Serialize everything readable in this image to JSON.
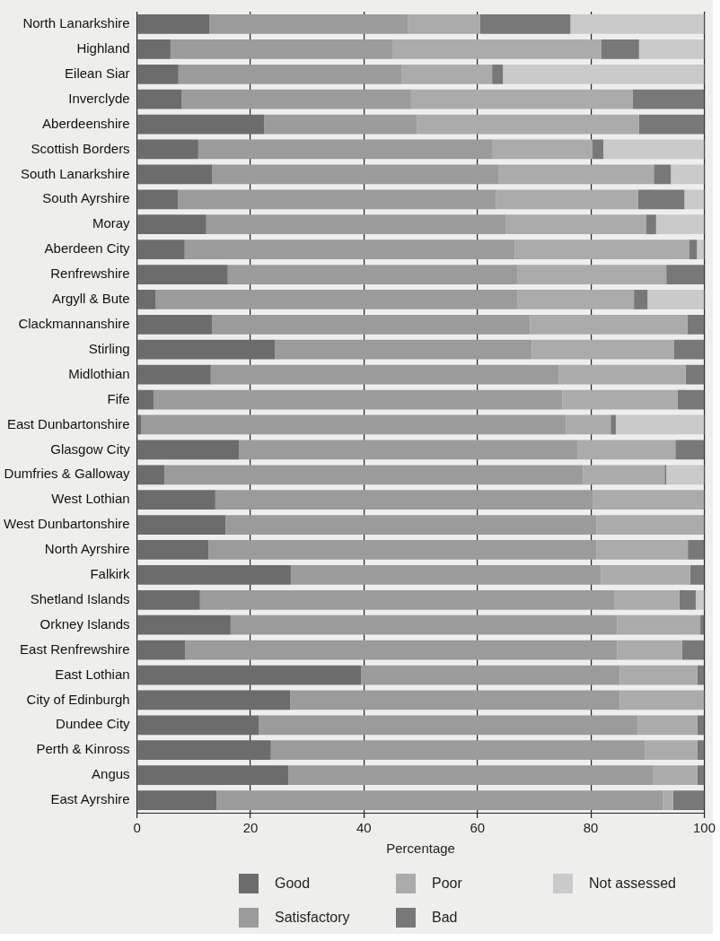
{
  "chart_data": {
    "type": "bar",
    "orientation": "horizontal",
    "stacked": true,
    "xlabel": "Percentage",
    "categories": [
      "North Lanarkshire",
      "Highland",
      "Eilean Siar",
      "Inverclyde",
      "Aberdeenshire",
      "Scottish Borders",
      "South Lanarkshire",
      "South Ayrshire",
      "Moray",
      "Aberdeen City",
      "Renfrewshire",
      "Argyll & Bute",
      "Clackmannanshire",
      "Stirling",
      "Midlothian",
      "Fife",
      "East Dunbartonshire",
      "Glasgow City",
      "Dumfries & Galloway",
      "West Lothian",
      "West Dunbartonshire",
      "North Ayrshire",
      "Falkirk",
      "Shetland Islands",
      "Orkney Islands",
      "East Renfrewshire",
      "East Lothian",
      "City of Edinburgh",
      "Dundee City",
      "Perth & Kinross",
      "Angus",
      "East Ayrshire"
    ],
    "series": [
      {
        "name": "Good",
        "color": "#6c6c6c",
        "values": [
          12.8,
          5.9,
          7.3,
          7.9,
          22.4,
          10.8,
          13.2,
          7.2,
          12.2,
          8.4,
          16,
          3.3,
          13.2,
          24.3,
          13,
          2.9,
          0.7,
          18,
          4.8,
          13.8,
          15.6,
          12.6,
          27.1,
          11.1,
          16.5,
          8.5,
          39.5,
          27,
          21.5,
          23.6,
          26.7,
          14
        ]
      },
      {
        "name": "Satisfactory",
        "color": "#9b9b9b",
        "values": [
          35,
          39.1,
          39.3,
          40.4,
          26.9,
          51.9,
          50.6,
          56.1,
          52.8,
          58.2,
          51,
          63.7,
          56.1,
          45.3,
          61.3,
          72.1,
          74.9,
          59.6,
          73.8,
          66.5,
          65.4,
          68.4,
          54.7,
          73,
          68.1,
          76.1,
          45.6,
          58.1,
          66.8,
          65.9,
          64.2,
          78.7
        ]
      },
      {
        "name": "Poor",
        "color": "#ababab",
        "values": [
          12.7,
          36.8,
          16,
          39.1,
          39.2,
          17.6,
          27.3,
          25,
          24.8,
          30.7,
          26.3,
          20.6,
          27.7,
          25.1,
          22.4,
          20.3,
          7.9,
          17.3,
          14.4,
          19.7,
          19,
          16.1,
          15.7,
          11.5,
          14.7,
          11.5,
          13.7,
          14.9,
          10.5,
          9.3,
          7.9,
          1.8
        ]
      },
      {
        "name": "Bad",
        "color": "#787878",
        "values": [
          15.9,
          6.7,
          1.9,
          12.6,
          11.5,
          1.9,
          3,
          8.2,
          1.7,
          1.4,
          6.7,
          2.4,
          3,
          5.3,
          3.3,
          4.7,
          0.9,
          5.1,
          0.3,
          0,
          0,
          2.9,
          2.5,
          2.9,
          0.7,
          3.9,
          1.2,
          0,
          1.2,
          1.2,
          1.2,
          5.5
        ]
      },
      {
        "name": "Not assessed",
        "color": "#cacaca",
        "values": [
          23.6,
          11.5,
          35.5,
          0,
          0,
          17.8,
          5.9,
          3.5,
          8.5,
          1.3,
          0,
          10,
          0,
          0,
          0,
          0,
          15.6,
          0,
          6.7,
          0,
          0,
          0,
          0,
          1.5,
          0,
          0,
          0,
          0,
          0,
          0,
          0,
          0
        ]
      }
    ],
    "xlim": [
      0,
      100
    ],
    "xticks": [
      0,
      20,
      40,
      60,
      80,
      100
    ],
    "grid": "x",
    "legend": "bottom"
  }
}
